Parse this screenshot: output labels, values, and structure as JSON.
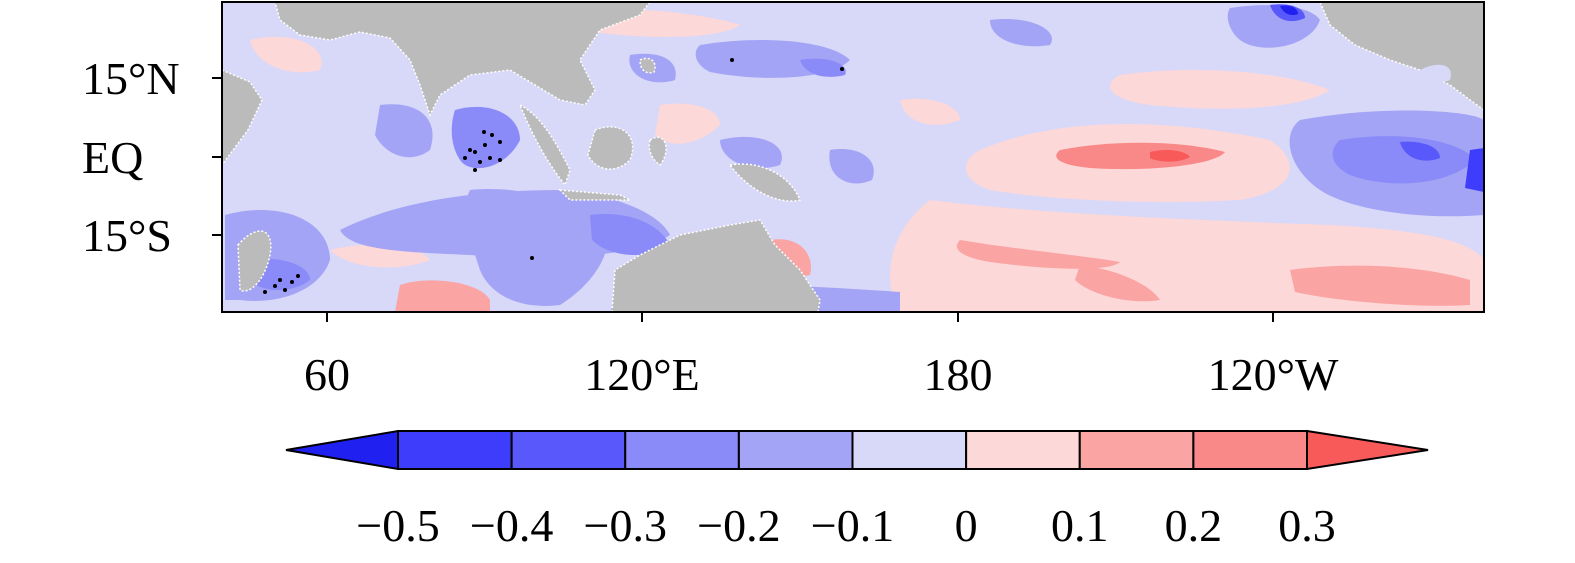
{
  "map": {
    "region": "Tropical Indo-Pacific",
    "colors": {
      "land": "#bbbbbb",
      "ocean_neutral": "#d8d8f8",
      "frame": "#000000"
    },
    "stippling_note": "black dots mark significant areas"
  },
  "axes": {
    "y_ticks": [
      {
        "label": "15°N",
        "lat": 15
      },
      {
        "label": "EQ",
        "lat": 0
      },
      {
        "label": "15°S",
        "lat": -15
      }
    ],
    "x_ticks": [
      {
        "label": "60",
        "lon": 60
      },
      {
        "label": "120°E",
        "lon": 120
      },
      {
        "label": "180",
        "lon": 180
      },
      {
        "label": "120°W",
        "lon": 240
      }
    ]
  },
  "colorbar": {
    "levels": [
      "−0.5",
      "−0.4",
      "−0.3",
      "−0.2",
      "−0.1",
      "0",
      "0.1",
      "0.2",
      "0.3"
    ],
    "colors": [
      "#2020f0",
      "#3d3dfb",
      "#5858fb",
      "#8a8af8",
      "#a4a4f6",
      "#d8d8f8",
      "#fdd8d8",
      "#fba4a4",
      "#f98888",
      "#f85a5a"
    ],
    "extend": "both"
  }
}
